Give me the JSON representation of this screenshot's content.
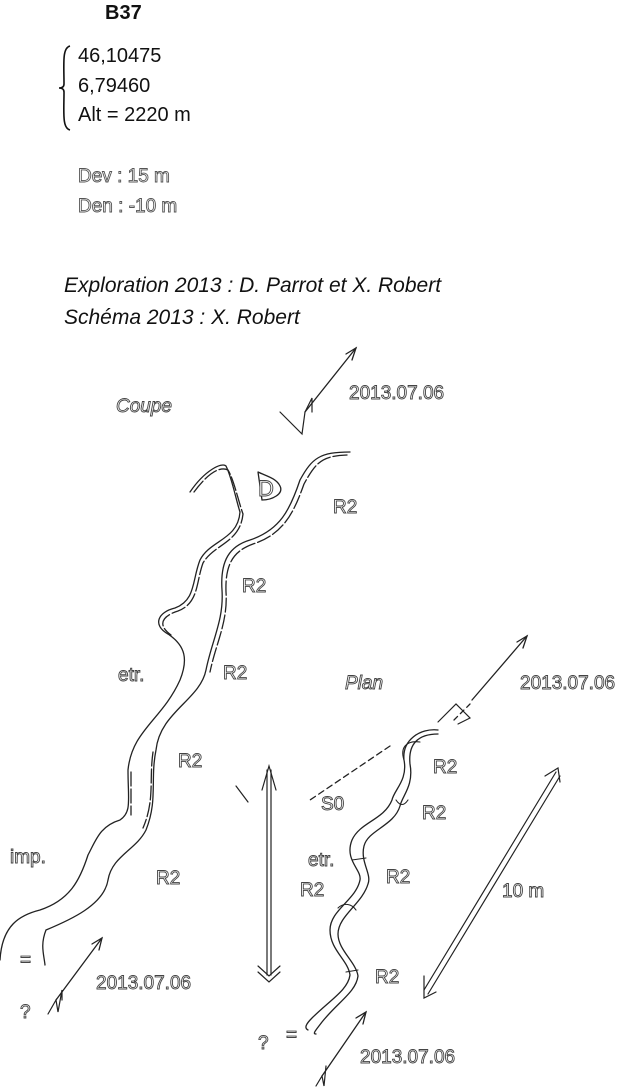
{
  "header": {
    "cave_id": "B37",
    "latitude": "46,10475",
    "longitude": "6,79460",
    "altitude": "Alt = 2220 m",
    "development": "Dev : 15 m",
    "depth": "Den : -10 m"
  },
  "credits": {
    "exploration": "Exploration 2013 : D. Parrot et X. Robert",
    "schema": "Schéma 2013 : X. Robert"
  },
  "section": {
    "title": "Coupe",
    "date_top": "2013.07.06",
    "date_bottom": "2013.07.06",
    "label_d": "D",
    "label_r2_1": "R2",
    "label_r2_2": "R2",
    "label_r2_3": "R2",
    "label_r2_4": "R2",
    "label_r2_5": "R2",
    "label_etr": "etr.",
    "label_imp": "imp.",
    "label_eq": "=",
    "label_q": "?"
  },
  "plan": {
    "title": "Plan",
    "date_top": "2013.07.06",
    "date_bottom": "2013.07.06",
    "label_r2_1": "R2",
    "label_r2_2": "R2",
    "label_r2_3": "R2",
    "label_r2_4": "R2",
    "label_r2_5": "R2",
    "label_s0": "S0",
    "label_etr": "etr.",
    "label_eq": "=",
    "label_q": "?",
    "scale": "10 m"
  }
}
